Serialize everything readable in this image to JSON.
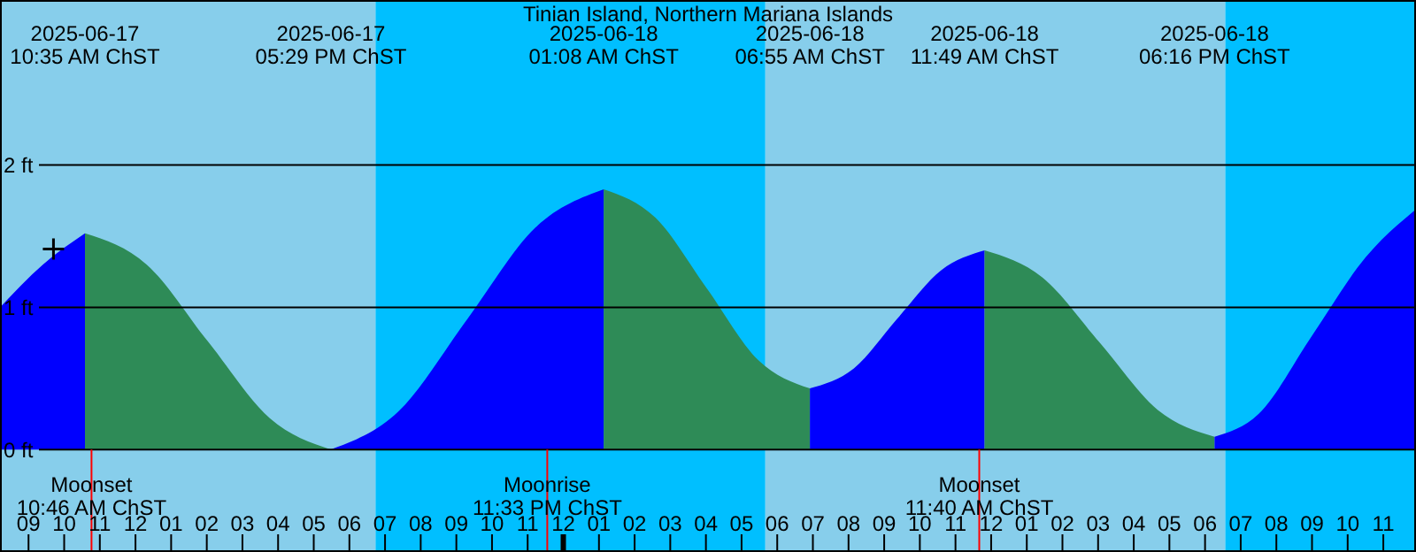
{
  "chart_data": {
    "type": "area",
    "title": "Tinian Island, Northern Mariana Islands",
    "xlim": [
      "2025-06-17T08:12",
      "2025-06-18T23:55"
    ],
    "ylim": [
      -0.72,
      3.16
    ],
    "yticks": [
      {
        "value": 0,
        "label": "0 ft"
      },
      {
        "value": 1,
        "label": "1 ft"
      },
      {
        "value": 2,
        "label": "2 ft"
      }
    ],
    "xticks": [
      {
        "value": "2025-06-17T09:00",
        "label": "09"
      },
      {
        "value": "2025-06-17T10:00",
        "label": "10"
      },
      {
        "value": "2025-06-17T11:00",
        "label": "11"
      },
      {
        "value": "2025-06-17T12:00",
        "label": "12"
      },
      {
        "value": "2025-06-17T13:00",
        "label": "01"
      },
      {
        "value": "2025-06-17T14:00",
        "label": "02"
      },
      {
        "value": "2025-06-17T15:00",
        "label": "03"
      },
      {
        "value": "2025-06-17T16:00",
        "label": "04"
      },
      {
        "value": "2025-06-17T17:00",
        "label": "05"
      },
      {
        "value": "2025-06-17T18:00",
        "label": "06"
      },
      {
        "value": "2025-06-17T19:00",
        "label": "07"
      },
      {
        "value": "2025-06-17T20:00",
        "label": "08"
      },
      {
        "value": "2025-06-17T21:00",
        "label": "09"
      },
      {
        "value": "2025-06-17T22:00",
        "label": "10"
      },
      {
        "value": "2025-06-17T23:00",
        "label": "11"
      },
      {
        "value": "2025-06-18T00:00",
        "label": "12"
      },
      {
        "value": "2025-06-18T01:00",
        "label": "01"
      },
      {
        "value": "2025-06-18T02:00",
        "label": "02"
      },
      {
        "value": "2025-06-18T03:00",
        "label": "03"
      },
      {
        "value": "2025-06-18T04:00",
        "label": "04"
      },
      {
        "value": "2025-06-18T05:00",
        "label": "05"
      },
      {
        "value": "2025-06-18T06:00",
        "label": "06"
      },
      {
        "value": "2025-06-18T07:00",
        "label": "07"
      },
      {
        "value": "2025-06-18T08:00",
        "label": "08"
      },
      {
        "value": "2025-06-18T09:00",
        "label": "09"
      },
      {
        "value": "2025-06-18T10:00",
        "label": "10"
      },
      {
        "value": "2025-06-18T11:00",
        "label": "11"
      },
      {
        "value": "2025-06-18T12:00",
        "label": "12"
      },
      {
        "value": "2025-06-18T13:00",
        "label": "01"
      },
      {
        "value": "2025-06-18T14:00",
        "label": "02"
      },
      {
        "value": "2025-06-18T15:00",
        "label": "03"
      },
      {
        "value": "2025-06-18T16:00",
        "label": "04"
      },
      {
        "value": "2025-06-18T17:00",
        "label": "05"
      },
      {
        "value": "2025-06-18T18:00",
        "label": "06"
      },
      {
        "value": "2025-06-18T19:00",
        "label": "07"
      },
      {
        "value": "2025-06-18T20:00",
        "label": "08"
      },
      {
        "value": "2025-06-18T21:00",
        "label": "09"
      },
      {
        "value": "2025-06-18T22:00",
        "label": "10"
      },
      {
        "value": "2025-06-18T23:00",
        "label": "11"
      }
    ],
    "grid": "y",
    "series": [
      {
        "color": "#0000ff",
        "x": [
          "2025-06-17T08:12",
          "2025-06-17T09:24",
          "2025-06-17T10:35"
        ],
        "values": [
          1.0,
          1.3,
          1.52
        ]
      },
      {
        "color": "#2e8b57",
        "x": [
          "2025-06-17T10:35",
          "2025-06-17T12:19",
          "2025-06-17T14:02",
          "2025-06-17T15:46",
          "2025-06-17T17:29"
        ],
        "values": [
          1.52,
          1.3,
          0.76,
          0.22,
          0.0
        ]
      },
      {
        "color": "#0000ff",
        "x": [
          "2025-06-17T17:29",
          "2025-06-17T19:23",
          "2025-06-17T21:19",
          "2025-06-17T23:13",
          "2025-06-18T01:08"
        ],
        "values": [
          0.0,
          0.27,
          0.92,
          1.56,
          1.83
        ]
      },
      {
        "color": "#2e8b57",
        "x": [
          "2025-06-18T01:08",
          "2025-06-18T02:35",
          "2025-06-18T04:02",
          "2025-06-18T05:28",
          "2025-06-18T06:55"
        ],
        "values": [
          1.83,
          1.63,
          1.13,
          0.63,
          0.43
        ]
      },
      {
        "color": "#0000ff",
        "x": [
          "2025-06-18T06:55",
          "2025-06-18T08:09",
          "2025-06-18T09:22",
          "2025-06-18T10:36",
          "2025-06-18T11:49"
        ],
        "values": [
          0.43,
          0.57,
          0.92,
          1.26,
          1.4
        ]
      },
      {
        "color": "#2e8b57",
        "x": [
          "2025-06-18T11:49",
          "2025-06-18T13:26",
          "2025-06-18T15:03",
          "2025-06-18T16:40",
          "2025-06-18T18:16"
        ],
        "values": [
          1.4,
          1.21,
          0.75,
          0.28,
          0.09
        ]
      },
      {
        "color": "#0000ff",
        "x": [
          "2025-06-18T18:16",
          "2025-06-18T19:30",
          "2025-06-18T21:00",
          "2025-06-18T22:30",
          "2025-06-18T23:55"
        ],
        "values": [
          0.09,
          0.25,
          0.8,
          1.35,
          1.69
        ]
      },
      {
        "type": "scatter",
        "marker": "cross",
        "color": "#000000",
        "x": [
          "2025-06-17T09:42"
        ],
        "values": [
          1.41
        ]
      }
    ],
    "bands": [
      {
        "axis": "x",
        "from": "2025-06-17T08:12",
        "to": "2025-06-17T18:44",
        "color": "#87ceeb"
      },
      {
        "axis": "x",
        "from": "2025-06-17T18:44",
        "to": "2025-06-18T05:40",
        "color": "#00bfff"
      },
      {
        "axis": "x",
        "from": "2025-06-18T05:40",
        "to": "2025-06-18T18:34",
        "color": "#87ceeb"
      },
      {
        "axis": "x",
        "from": "2025-06-18T18:34",
        "to": "2025-06-18T23:55",
        "color": "#00bfff"
      }
    ],
    "ref_lines": [
      {
        "axis": "x",
        "value": "2025-06-17T10:46",
        "label": "Moonset\n10:46 AM ChST",
        "color": "#ff0000"
      },
      {
        "axis": "x",
        "value": "2025-06-17T23:33",
        "label": "Moonrise\n11:33 PM ChST",
        "color": "#ff0000"
      },
      {
        "axis": "x",
        "value": "2025-06-18T11:40",
        "label": "Moonset\n11:40 AM ChST",
        "color": "#ff0000"
      }
    ],
    "annotations": [
      "2025-06-17\n10:35 AM ChST",
      "2025-06-17\n05:29 PM ChST",
      "2025-06-18\n01:08 AM ChST",
      "2025-06-18\n06:55 AM ChST",
      "2025-06-18\n11:49 AM ChST",
      "2025-06-18\n06:16 PM ChST"
    ]
  }
}
